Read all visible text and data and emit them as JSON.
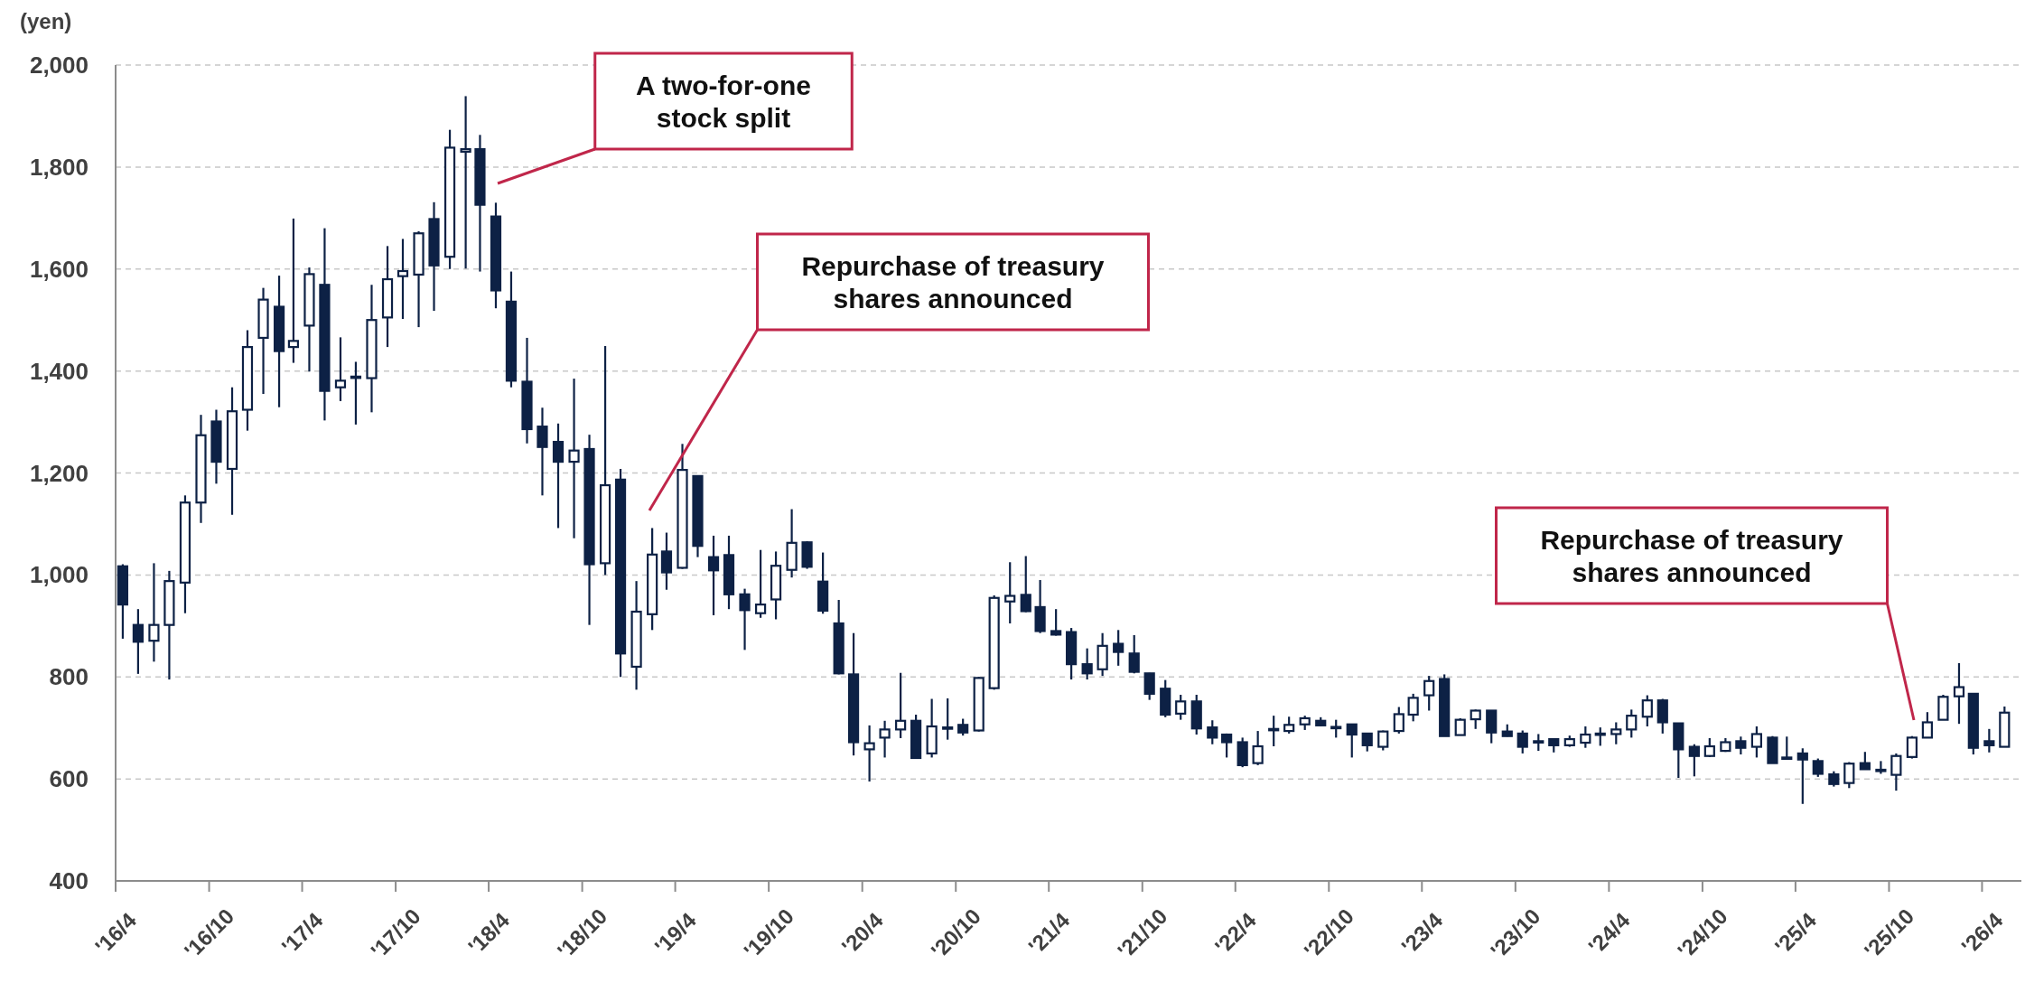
{
  "chart_data": {
    "type": "candlestick",
    "ylabel": "(yen)",
    "x": [
      "2016-04-15",
      "2016-05-15",
      "2016-06-15",
      "2016-07-15",
      "2016-08-15",
      "2016-09-15",
      "2016-10-15",
      "2016-11-15",
      "2016-12-15",
      "2017-01-15",
      "2017-02-15",
      "2017-03-15",
      "2017-04-15",
      "2017-05-15",
      "2017-06-15",
      "2017-07-15",
      "2017-08-15",
      "2017-09-15",
      "2017-10-15",
      "2017-11-15",
      "2017-12-15",
      "2018-01-15",
      "2018-02-15",
      "2018-03-15",
      "2018-04-15",
      "2018-05-15",
      "2018-06-15",
      "2018-07-15",
      "2018-08-15",
      "2018-09-15",
      "2018-10-15",
      "2018-11-15",
      "2018-12-15",
      "2019-01-15",
      "2019-02-15",
      "2019-03-15",
      "2019-04-15",
      "2019-05-15",
      "2019-06-15",
      "2019-07-15",
      "2019-08-15",
      "2019-09-15",
      "2019-10-15",
      "2019-11-15",
      "2019-12-15",
      "2020-01-15",
      "2020-02-15",
      "2020-03-15",
      "2020-04-15",
      "2020-05-15",
      "2020-06-15",
      "2020-07-15",
      "2020-08-15",
      "2020-09-15",
      "2020-10-15",
      "2020-11-15",
      "2020-12-15",
      "2021-01-15",
      "2021-02-15",
      "2021-03-15",
      "2021-04-15",
      "2021-05-15",
      "2021-06-15",
      "2021-07-15",
      "2021-08-15",
      "2021-09-15",
      "2021-10-15",
      "2021-11-15",
      "2021-12-15",
      "2022-01-15",
      "2022-02-15",
      "2022-03-15",
      "2022-04-15",
      "2022-05-15",
      "2022-06-15",
      "2022-07-15",
      "2022-08-15",
      "2022-09-15",
      "2022-10-15",
      "2022-11-15",
      "2022-12-15",
      "2023-01-15",
      "2023-02-15",
      "2023-03-15",
      "2023-04-15",
      "2023-05-15",
      "2023-06-15",
      "2023-07-15",
      "2023-08-15",
      "2023-09-15",
      "2023-10-15",
      "2023-11-15",
      "2023-12-15",
      "2024-01-15",
      "2024-02-15",
      "2024-03-15",
      "2024-04-15",
      "2024-05-15",
      "2024-06-15",
      "2024-07-15",
      "2024-08-15",
      "2024-09-15",
      "2024-10-15",
      "2024-11-15",
      "2024-12-15",
      "2025-01-15",
      "2025-02-15",
      "2025-03-15",
      "2025-04-15",
      "2025-05-15",
      "2025-06-15",
      "2025-07-15",
      "2025-08-15",
      "2025-09-15",
      "2025-10-15",
      "2025-11-15",
      "2025-12-15",
      "2026-01-15",
      "2026-02-15",
      "2026-03-15",
      "2026-04-15",
      "2026-05-15"
    ],
    "ohlc": [
      [
        1017,
        1021,
        875,
        942
      ],
      [
        902,
        933,
        806,
        869
      ],
      [
        871,
        1023,
        830,
        902
      ],
      [
        902,
        1008,
        795,
        988
      ],
      [
        985,
        1156,
        925,
        1142
      ],
      [
        1142,
        1314,
        1102,
        1274
      ],
      [
        1301,
        1324,
        1179,
        1222
      ],
      [
        1208,
        1368,
        1118,
        1321
      ],
      [
        1324,
        1480,
        1283,
        1447
      ],
      [
        1465,
        1563,
        1355,
        1540
      ],
      [
        1526,
        1587,
        1329,
        1439
      ],
      [
        1447,
        1699,
        1416,
        1459
      ],
      [
        1489,
        1603,
        1399,
        1590
      ],
      [
        1569,
        1680,
        1303,
        1361
      ],
      [
        1368,
        1466,
        1341,
        1381
      ],
      [
        1387,
        1418,
        1295,
        1389
      ],
      [
        1386,
        1569,
        1319,
        1500
      ],
      [
        1505,
        1645,
        1447,
        1580
      ],
      [
        1586,
        1659,
        1502,
        1596
      ],
      [
        1589,
        1674,
        1486,
        1670
      ],
      [
        1698,
        1731,
        1518,
        1607
      ],
      [
        1624,
        1873,
        1600,
        1838
      ],
      [
        1830,
        1939,
        1601,
        1835
      ],
      [
        1835,
        1863,
        1595,
        1726
      ],
      [
        1703,
        1730,
        1523,
        1558
      ],
      [
        1536,
        1595,
        1368,
        1381
      ],
      [
        1379,
        1465,
        1258,
        1286
      ],
      [
        1291,
        1328,
        1156,
        1251
      ],
      [
        1261,
        1297,
        1092,
        1222
      ],
      [
        1222,
        1385,
        1072,
        1244
      ],
      [
        1247,
        1275,
        902,
        1021
      ],
      [
        1023,
        1449,
        1000,
        1176
      ],
      [
        1187,
        1208,
        800,
        846
      ],
      [
        820,
        988,
        775,
        928
      ],
      [
        923,
        1092,
        892,
        1040
      ],
      [
        1046,
        1083,
        971,
        1005
      ],
      [
        1014,
        1257,
        1012,
        1206
      ],
      [
        1194,
        1194,
        1035,
        1057
      ],
      [
        1035,
        1077,
        921,
        1009
      ],
      [
        1039,
        1077,
        933,
        962
      ],
      [
        962,
        973,
        853,
        931
      ],
      [
        925,
        1049,
        916,
        942
      ],
      [
        952,
        1046,
        913,
        1018
      ],
      [
        1010,
        1129,
        995,
        1063
      ],
      [
        1064,
        1066,
        1012,
        1016
      ],
      [
        987,
        1044,
        924,
        930
      ],
      [
        905,
        951,
        805,
        807
      ],
      [
        805,
        886,
        646,
        672
      ],
      [
        658,
        705,
        595,
        670
      ],
      [
        681,
        714,
        642,
        697
      ],
      [
        697,
        808,
        680,
        714
      ],
      [
        714,
        726,
        640,
        641
      ],
      [
        650,
        757,
        642,
        703
      ],
      [
        700,
        758,
        677,
        701
      ],
      [
        706,
        718,
        685,
        691
      ],
      [
        695,
        800,
        693,
        798
      ],
      [
        778,
        960,
        775,
        955
      ],
      [
        948,
        1025,
        905,
        959
      ],
      [
        961,
        1037,
        927,
        929
      ],
      [
        937,
        990,
        886,
        890
      ],
      [
        890,
        933,
        881,
        883
      ],
      [
        888,
        896,
        795,
        825
      ],
      [
        825,
        856,
        795,
        807
      ],
      [
        815,
        886,
        802,
        861
      ],
      [
        865,
        892,
        822,
        849
      ],
      [
        846,
        882,
        807,
        810
      ],
      [
        807,
        808,
        755,
        767
      ],
      [
        777,
        794,
        721,
        726
      ],
      [
        728,
        765,
        716,
        752
      ],
      [
        752,
        765,
        687,
        699
      ],
      [
        701,
        715,
        668,
        681
      ],
      [
        687,
        689,
        642,
        672
      ],
      [
        672,
        681,
        623,
        627
      ],
      [
        631,
        694,
        627,
        664
      ],
      [
        697,
        724,
        664,
        698
      ],
      [
        694,
        722,
        689,
        706
      ],
      [
        707,
        724,
        696,
        719
      ],
      [
        714,
        721,
        703,
        705
      ],
      [
        702,
        716,
        681,
        701
      ],
      [
        707,
        707,
        642,
        687
      ],
      [
        689,
        689,
        654,
        666
      ],
      [
        663,
        695,
        656,
        693
      ],
      [
        694,
        741,
        689,
        727
      ],
      [
        726,
        767,
        713,
        759
      ],
      [
        764,
        802,
        734,
        792
      ],
      [
        796,
        805,
        684,
        684
      ],
      [
        686,
        719,
        686,
        716
      ],
      [
        717,
        736,
        698,
        734
      ],
      [
        734,
        734,
        670,
        691
      ],
      [
        693,
        707,
        683,
        684
      ],
      [
        689,
        695,
        650,
        663
      ],
      [
        674,
        688,
        655,
        673
      ],
      [
        678,
        678,
        652,
        666
      ],
      [
        666,
        685,
        663,
        678
      ],
      [
        671,
        703,
        661,
        687
      ],
      [
        688,
        701,
        665,
        689
      ],
      [
        688,
        711,
        668,
        697
      ],
      [
        697,
        736,
        681,
        724
      ],
      [
        722,
        764,
        703,
        754
      ],
      [
        754,
        757,
        689,
        711
      ],
      [
        709,
        709,
        602,
        658
      ],
      [
        663,
        668,
        605,
        645
      ],
      [
        645,
        680,
        643,
        664
      ],
      [
        655,
        680,
        653,
        672
      ],
      [
        674,
        683,
        648,
        661
      ],
      [
        663,
        703,
        642,
        688
      ],
      [
        681,
        684,
        631,
        631
      ],
      [
        642,
        683,
        640,
        641
      ],
      [
        650,
        660,
        551,
        638
      ],
      [
        635,
        640,
        604,
        610
      ],
      [
        609,
        615,
        585,
        590
      ],
      [
        592,
        633,
        582,
        630
      ],
      [
        631,
        653,
        619,
        619
      ],
      [
        618,
        635,
        610,
        617
      ],
      [
        608,
        650,
        577,
        645
      ],
      [
        643,
        684,
        640,
        681
      ],
      [
        681,
        731,
        681,
        711
      ],
      [
        716,
        765,
        716,
        761
      ],
      [
        762,
        827,
        708,
        780
      ],
      [
        767,
        767,
        648,
        661
      ],
      [
        674,
        698,
        652,
        666
      ],
      [
        663,
        742,
        663,
        730
      ]
    ],
    "color": "#0d2145",
    "xlim": [
      "2016-04-01",
      "2026-06-17"
    ],
    "xticks": [
      {
        "value": "2016-04",
        "label": "'16/4"
      },
      {
        "value": "2016-10",
        "label": "'16/10"
      },
      {
        "value": "2017-04",
        "label": "'17/4"
      },
      {
        "value": "2017-10",
        "label": "'17/10"
      },
      {
        "value": "2018-04",
        "label": "'18/4"
      },
      {
        "value": "2018-10",
        "label": "'18/10"
      },
      {
        "value": "2019-04",
        "label": "'19/4"
      },
      {
        "value": "2019-10",
        "label": "'19/10"
      },
      {
        "value": "2020-04",
        "label": "'20/4"
      },
      {
        "value": "2020-10",
        "label": "'20/10"
      },
      {
        "value": "2021-04",
        "label": "'21/4"
      },
      {
        "value": "2021-10",
        "label": "'21/10"
      },
      {
        "value": "2022-04",
        "label": "'22/4"
      },
      {
        "value": "2022-10",
        "label": "'22/10"
      },
      {
        "value": "2023-04",
        "label": "'23/4"
      },
      {
        "value": "2023-10",
        "label": "'23/10"
      },
      {
        "value": "2024-04",
        "label": "'24/4"
      },
      {
        "value": "2024-10",
        "label": "'24/10"
      },
      {
        "value": "2025-04",
        "label": "'25/4"
      },
      {
        "value": "2025-10",
        "label": "'25/10"
      },
      {
        "value": "2026-04",
        "label": "'26/4"
      }
    ],
    "ylim": [
      400,
      2000
    ],
    "yticks": [
      {
        "value": 400,
        "label": "400"
      },
      {
        "value": 600,
        "label": "600"
      },
      {
        "value": 800,
        "label": "800"
      },
      {
        "value": 1000,
        "label": "1,000"
      },
      {
        "value": 1200,
        "label": "1,200"
      },
      {
        "value": 1400,
        "label": "1,400"
      },
      {
        "value": 1600,
        "label": "1,600"
      },
      {
        "value": 1800,
        "label": "1,800"
      },
      {
        "value": 2000,
        "label": "2,000"
      }
    ],
    "grid": "y",
    "annotations": [
      "A two-for-one stock split",
      "Repurchase of treasury shares announced",
      "Repurchase of treasury shares announced"
    ]
  }
}
